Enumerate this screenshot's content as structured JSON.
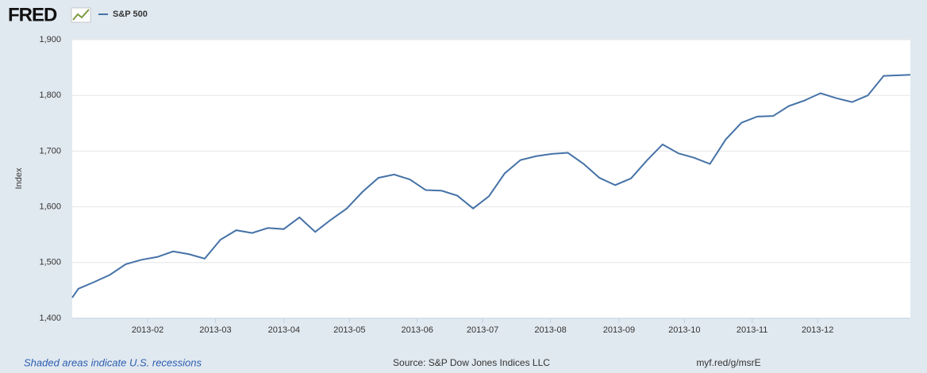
{
  "chart_data": {
    "type": "line",
    "brand": "FRED",
    "y_label": "Index",
    "footer_left": "Shaded areas indicate U.S. recessions",
    "footer_center": "Source: S&P Dow Jones Indices LLC",
    "footer_right": "myf.red/g/msrE",
    "x": [
      -0.39,
      0,
      1,
      2,
      3,
      4,
      5,
      6,
      7,
      8,
      9,
      10,
      11,
      12,
      13,
      14,
      15,
      16,
      17,
      18,
      19,
      20,
      21,
      22,
      23,
      24,
      25,
      26,
      27,
      28,
      29,
      30,
      31,
      32,
      33,
      34,
      35,
      36,
      37,
      38,
      39,
      40,
      41,
      42,
      43,
      44,
      45,
      46,
      47,
      48,
      49,
      50,
      51,
      52.69
    ],
    "series": [
      {
        "name": "S&P 500",
        "color": "#4572a7",
        "values": [
          1437,
          1453,
          1465,
          1478,
          1497,
          1505,
          1510,
          1520,
          1515,
          1507,
          1541,
          1558,
          1553,
          1562,
          1560,
          1581,
          1555,
          1577,
          1597,
          1627,
          1652,
          1658,
          1649,
          1630,
          1629,
          1620,
          1597,
          1619,
          1660,
          1684,
          1691,
          1695,
          1697,
          1677,
          1652,
          1639,
          1651,
          1683,
          1712,
          1696,
          1688,
          1677,
          1721,
          1751,
          1762,
          1763,
          1781,
          1791,
          1804,
          1795,
          1788,
          1800,
          1835,
          1837
        ]
      }
    ],
    "xlim": [
      -0.39,
      52.69
    ],
    "xticks": [
      {
        "value": 4.39,
        "label": "2013-02"
      },
      {
        "value": 8.68,
        "label": "2013-03"
      },
      {
        "value": 13.02,
        "label": "2013-04"
      },
      {
        "value": 17.17,
        "label": "2013-05"
      },
      {
        "value": 21.46,
        "label": "2013-06"
      },
      {
        "value": 25.6,
        "label": "2013-07"
      },
      {
        "value": 29.9,
        "label": "2013-08"
      },
      {
        "value": 34.24,
        "label": "2013-09"
      },
      {
        "value": 38.38,
        "label": "2013-10"
      },
      {
        "value": 42.67,
        "label": "2013-11"
      },
      {
        "value": 46.82,
        "label": "2013-12"
      }
    ],
    "ylim": [
      1400,
      1900
    ],
    "yticks": [
      {
        "value": 1400,
        "label": "1,400"
      },
      {
        "value": 1500,
        "label": "1,500"
      },
      {
        "value": 1600,
        "label": "1,600"
      },
      {
        "value": 1700,
        "label": "1,700"
      },
      {
        "value": 1800,
        "label": "1,800"
      },
      {
        "value": 1900,
        "label": "1,900"
      }
    ],
    "grid": true
  }
}
